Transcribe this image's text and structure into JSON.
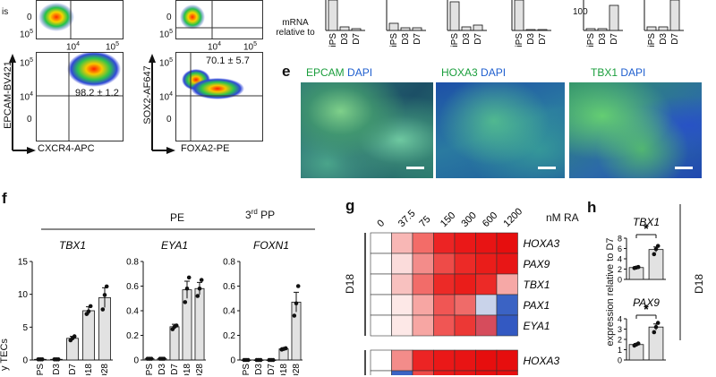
{
  "panels": {
    "d_flow": {
      "ylabel_left": "EPCAM-BV421",
      "xlabel_left": "CXCR4-APC",
      "ylabel_right": "SOX2-AF647",
      "xlabel_right": "FOXA2-PE",
      "value_left": "98.2 ± 1.2",
      "value_right": "70.1 ± 5.7",
      "top_left_fragment": "is",
      "tick_10_5": "10",
      "tick_exp_5": "5",
      "tick_10_4": "10",
      "tick_exp_4": "4",
      "tick_0": "0"
    },
    "d_bars_top": {
      "ylabel": "mRNA relative to",
      "tick_labels": [
        "iPS",
        "D3",
        "D7"
      ],
      "tick_100": "100"
    },
    "e": {
      "label": "e",
      "images": [
        {
          "marker": "EPCAM",
          "counter": "DAPI"
        },
        {
          "marker": "HOXA3",
          "counter": "DAPI"
        },
        {
          "marker": "TBX1",
          "counter": "DAPI"
        }
      ]
    },
    "f": {
      "label": "f",
      "group_pe": "PE",
      "group_3pp_prefix": "3",
      "group_3pp_sup": "rd",
      "group_3pp_suffix": " PP",
      "ylabel_fragment": "y TECs",
      "chart_data": [
        {
          "type": "bar",
          "title": "TBX1",
          "categories": [
            "iPS",
            "D3",
            "D7",
            "D18",
            "D28"
          ],
          "values": [
            0.1,
            0.1,
            3.3,
            7.5,
            9.5
          ],
          "errors": [
            0.05,
            0.05,
            0.3,
            0.6,
            1.5
          ],
          "points": [
            [
              0.1,
              0.1,
              0.1
            ],
            [
              0.1,
              0.1,
              0.1
            ],
            [
              3.0,
              3.3,
              3.6
            ],
            [
              7.0,
              7.4,
              8.2
            ],
            [
              7.7,
              9.9,
              11.2
            ]
          ],
          "ylim": [
            0,
            15
          ],
          "yticks": [
            0,
            5,
            10,
            15
          ]
        },
        {
          "type": "bar",
          "title": "EYA1",
          "categories": [
            "iPS",
            "D3",
            "D7",
            "D18",
            "D28"
          ],
          "values": [
            0.01,
            0.01,
            0.27,
            0.57,
            0.58
          ],
          "errors": [
            0.005,
            0.005,
            0.02,
            0.07,
            0.05
          ],
          "points": [
            [
              0.01,
              0.01,
              0.01
            ],
            [
              0.01,
              0.01,
              0.01
            ],
            [
              0.25,
              0.27,
              0.28
            ],
            [
              0.47,
              0.58,
              0.67
            ],
            [
              0.52,
              0.58,
              0.65
            ]
          ],
          "ylim": [
            0,
            0.8
          ],
          "yticks": [
            0,
            0.2,
            0.4,
            0.6,
            0.8
          ]
        },
        {
          "type": "bar",
          "title": "FOXN1",
          "categories": [
            "iPS",
            "D3",
            "D7",
            "D18",
            "D28"
          ],
          "values": [
            0.0,
            0.0,
            0.0,
            0.09,
            0.47
          ],
          "errors": [
            0.0,
            0.0,
            0.0,
            0.01,
            0.08
          ],
          "points": [
            [
              0,
              0,
              0
            ],
            [
              0,
              0,
              0
            ],
            [
              0,
              0,
              0
            ],
            [
              0.085,
              0.09,
              0.095
            ],
            [
              0.36,
              0.46,
              0.6
            ]
          ],
          "ylim": [
            0,
            0.8
          ],
          "yticks": [
            0,
            0.2,
            0.4,
            0.6,
            0.8
          ]
        }
      ]
    },
    "g": {
      "label": "g",
      "unit": "nM RA",
      "group_label": "D18",
      "chart_data": {
        "type": "heatmap",
        "columns": [
          "0",
          "37.5",
          "75",
          "150",
          "300",
          "600",
          "1200"
        ],
        "rows": [
          "HOXA3",
          "PAX9",
          "TBX1",
          "PAX1",
          "EYA1"
        ],
        "colors": [
          [
            "#ffffff",
            "#f8b7b5",
            "#f36c68",
            "#ec2424",
            "#ea1818",
            "#e81414",
            "#e60e0e"
          ],
          [
            "#ffffff",
            "#fbdcdb",
            "#f38c8a",
            "#ee4b48",
            "#ec2a27",
            "#ea1d1a",
            "#e81616"
          ],
          [
            "#ffffff",
            "#f8c1bf",
            "#f26c69",
            "#ec2a27",
            "#ea1d1a",
            "#ec2a27",
            "#f6a8a6"
          ],
          [
            "#ffffff",
            "#fde8e7",
            "#f7a6a3",
            "#f05654",
            "#ef6b69",
            "#c9d3ea",
            "#3b63c4"
          ],
          [
            "#ffffff",
            "#fde8e7",
            "#f7a6a3",
            "#f05654",
            "#ec3835",
            "#d64c5c",
            "#3359c2"
          ]
        ],
        "rows_second": [
          "HOXA3",
          "PAX9"
        ],
        "colors_second": [
          [
            "#ffffff",
            "#f38c8a",
            "#ec2424",
            "#ea1818",
            "#e81414",
            "#e60e0e",
            "#e60e0e"
          ],
          [
            "#ffffff",
            "#3b63c4",
            "#ef4a48",
            "#ea1818",
            "#e81414",
            "#e60e0e",
            "#e60e0e"
          ]
        ]
      }
    },
    "h": {
      "label": "h",
      "ylabel": "expression relative to D7",
      "group_label": "D18",
      "star": "*",
      "chart_data": [
        {
          "type": "bar",
          "title": "TBX1",
          "categories": [
            "",
            ""
          ],
          "values": [
            2.3,
            5.8
          ],
          "errors": [
            0.1,
            0.5
          ],
          "points": [
            [
              2.2,
              2.3,
              2.4
            ],
            [
              4.9,
              5.9,
              6.5
            ]
          ],
          "ylim": [
            0,
            8
          ],
          "yticks": [
            0,
            2,
            4,
            6,
            8
          ]
        },
        {
          "type": "bar",
          "title": "PAX9",
          "categories": [
            "",
            ""
          ],
          "values": [
            1.5,
            3.2
          ],
          "errors": [
            0.1,
            0.3
          ],
          "points": [
            [
              1.4,
              1.5,
              1.6
            ],
            [
              2.7,
              3.2,
              3.6
            ]
          ],
          "ylim": [
            0,
            4
          ],
          "yticks": [
            0,
            1,
            2,
            3,
            4
          ]
        }
      ]
    }
  },
  "colors": {
    "bar_fill": "#e2e2e2",
    "line": "#111111",
    "green_text": "#1a9e3c",
    "blue_text": "#1f5fcf"
  }
}
